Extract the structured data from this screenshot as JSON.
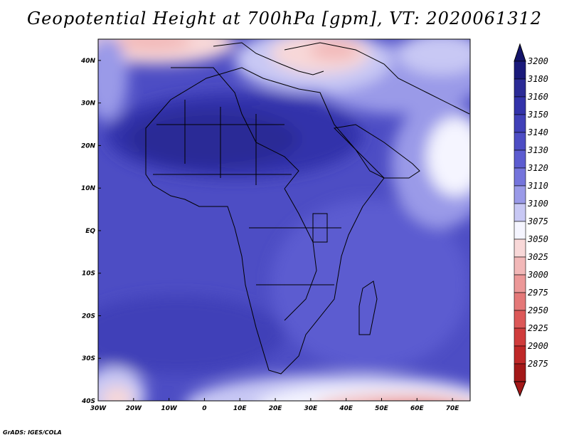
{
  "title": "Geopotential Height at 700hPa [gpm], VT: 2020061312",
  "credit": "GrADS: IGES/COLA",
  "map": {
    "lon_range": [
      -30,
      75
    ],
    "lat_range": [
      -40,
      45
    ],
    "lon_ticks": [
      {
        "value": -30,
        "label": "30W"
      },
      {
        "value": -20,
        "label": "20W"
      },
      {
        "value": -10,
        "label": "10W"
      },
      {
        "value": 0,
        "label": "0"
      },
      {
        "value": 10,
        "label": "10E"
      },
      {
        "value": 20,
        "label": "20E"
      },
      {
        "value": 30,
        "label": "30E"
      },
      {
        "value": 40,
        "label": "40E"
      },
      {
        "value": 50,
        "label": "50E"
      },
      {
        "value": 60,
        "label": "60E"
      },
      {
        "value": 70,
        "label": "70E"
      }
    ],
    "lat_ticks": [
      {
        "value": 40,
        "label": "40N"
      },
      {
        "value": 30,
        "label": "30N"
      },
      {
        "value": 20,
        "label": "20N"
      },
      {
        "value": 10,
        "label": "10N"
      },
      {
        "value": 0,
        "label": "EQ"
      },
      {
        "value": -10,
        "label": "10S"
      },
      {
        "value": -20,
        "label": "20S"
      },
      {
        "value": -30,
        "label": "30S"
      },
      {
        "value": -40,
        "label": "40S"
      }
    ]
  },
  "colorbar": {
    "levels": [
      {
        "label": "3200",
        "color": "#1a1a7a"
      },
      {
        "label": "3180",
        "color": "#2b2b96"
      },
      {
        "label": "3160",
        "color": "#3333aa"
      },
      {
        "label": "3150",
        "color": "#4040b8"
      },
      {
        "label": "3140",
        "color": "#4d4dc4"
      },
      {
        "label": "3130",
        "color": "#5c5cd0"
      },
      {
        "label": "3120",
        "color": "#7474dc"
      },
      {
        "label": "3110",
        "color": "#9a9ae8"
      },
      {
        "label": "3100",
        "color": "#c8c8f4"
      },
      {
        "label": "3075",
        "color": "#f5f5ff"
      },
      {
        "label": "3050",
        "color": "#f8d8d8"
      },
      {
        "label": "3025",
        "color": "#f2b8b8"
      },
      {
        "label": "3000",
        "color": "#ec9898"
      },
      {
        "label": "2975",
        "color": "#e47878"
      },
      {
        "label": "2950",
        "color": "#dc5858"
      },
      {
        "label": "2925",
        "color": "#d03c3c"
      },
      {
        "label": "2900",
        "color": "#bf2828"
      },
      {
        "label": "2875",
        "color": "#a31818"
      }
    ],
    "top_arrow_color": "#14146a",
    "bottom_arrow_color": "#a31818"
  }
}
